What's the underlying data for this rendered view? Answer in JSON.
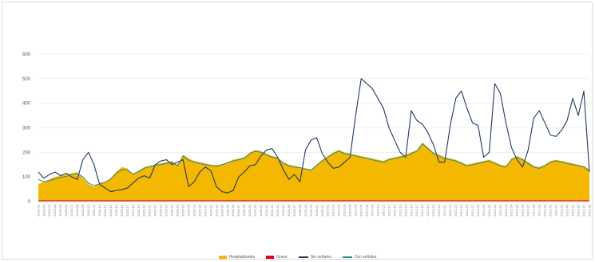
{
  "colors": {
    "hospitalizados": "#F5B800",
    "grave": "#E8001C",
    "sin_senales": "#1F3864",
    "con_senales": "#2E8B8B",
    "grid": "#e6e6e6",
    "axis": "#bfbfbf"
  },
  "legend": [
    {
      "label": "Hospitalizados",
      "kind": "area",
      "color_key": "hospitalizados"
    },
    {
      "label": "Grave",
      "kind": "area",
      "color_key": "grave"
    },
    {
      "label": "Sin señales",
      "kind": "line",
      "color_key": "sin_senales"
    },
    {
      "label": "Con señales",
      "kind": "line",
      "color_key": "con_senales"
    }
  ],
  "chart_data": {
    "type": "area",
    "title": "",
    "xlabel": "",
    "ylabel": "",
    "ylim": [
      0,
      600
    ],
    "y_ticks": [
      "0",
      "100",
      "200",
      "300",
      "400",
      "500",
      "600"
    ],
    "grid": true,
    "legend_position": "bottom",
    "x_count": 100,
    "series": [
      {
        "name": "Hospitalizados",
        "kind": "area",
        "values": [
          70,
          80,
          90,
          100,
          105,
          110,
          115,
          118,
          95,
          70,
          60,
          75,
          80,
          95,
          120,
          140,
          135,
          110,
          125,
          140,
          145,
          150,
          155,
          160,
          165,
          150,
          190,
          175,
          165,
          160,
          155,
          150,
          148,
          152,
          160,
          170,
          175,
          180,
          200,
          210,
          205,
          195,
          185,
          180,
          160,
          150,
          145,
          140,
          135,
          130,
          150,
          170,
          185,
          200,
          210,
          200,
          195,
          190,
          185,
          180,
          175,
          170,
          165,
          175,
          180,
          185,
          190,
          200,
          210,
          240,
          220,
          200,
          190,
          180,
          175,
          170,
          160,
          150,
          155,
          160,
          165,
          170,
          160,
          150,
          145,
          175,
          185,
          175,
          160,
          145,
          140,
          150,
          165,
          170,
          165,
          160,
          155,
          150,
          145,
          130
        ]
      },
      {
        "name": "Grave",
        "kind": "area",
        "values": [
          5,
          5,
          5,
          5,
          5,
          5,
          5,
          5,
          5,
          5,
          5,
          5,
          5,
          5,
          5,
          5,
          5,
          5,
          5,
          5,
          5,
          5,
          5,
          5,
          5,
          5,
          5,
          5,
          5,
          5,
          5,
          5,
          5,
          5,
          5,
          5,
          5,
          5,
          5,
          5,
          5,
          5,
          5,
          5,
          5,
          5,
          5,
          5,
          5,
          5,
          5,
          5,
          5,
          5,
          5,
          5,
          5,
          5,
          5,
          5,
          5,
          5,
          5,
          5,
          5,
          5,
          5,
          5,
          5,
          5,
          5,
          5,
          5,
          5,
          5,
          5,
          5,
          5,
          5,
          5,
          5,
          5,
          5,
          5,
          5,
          5,
          5,
          5,
          5,
          5,
          5,
          5,
          5,
          5,
          5,
          5,
          5,
          5,
          5,
          5
        ]
      },
      {
        "name": "Sin señales",
        "kind": "line",
        "values": [
          120,
          95,
          110,
          120,
          105,
          115,
          100,
          90,
          170,
          200,
          150,
          70,
          55,
          40,
          45,
          48,
          55,
          75,
          95,
          105,
          95,
          150,
          165,
          170,
          150,
          160,
          170,
          60,
          80,
          120,
          140,
          125,
          60,
          40,
          35,
          45,
          100,
          120,
          145,
          150,
          185,
          210,
          215,
          180,
          130,
          90,
          110,
          80,
          210,
          250,
          260,
          195,
          160,
          135,
          140,
          160,
          180,
          350,
          500,
          480,
          460,
          420,
          380,
          300,
          250,
          200,
          180,
          370,
          330,
          315,
          280,
          230,
          160,
          160,
          310,
          420,
          450,
          380,
          320,
          310,
          180,
          200,
          480,
          440,
          320,
          220,
          170,
          140,
          210,
          340,
          370,
          320,
          270,
          265,
          290,
          330,
          420,
          350,
          450,
          120
        ]
      },
      {
        "name": "Con señales",
        "kind": "line",
        "values": [
          90,
          80,
          85,
          92,
          98,
          102,
          110,
          115,
          100,
          75,
          65,
          72,
          78,
          92,
          115,
          130,
          128,
          112,
          122,
          135,
          142,
          148,
          150,
          155,
          160,
          145,
          185,
          168,
          160,
          155,
          150,
          146,
          144,
          150,
          158,
          165,
          170,
          175,
          195,
          205,
          200,
          190,
          180,
          175,
          155,
          145,
          140,
          138,
          132,
          128,
          148,
          165,
          180,
          195,
          205,
          195,
          190,
          185,
          180,
          175,
          170,
          165,
          160,
          170,
          175,
          180,
          185,
          195,
          205,
          235,
          215,
          195,
          185,
          175,
          170,
          165,
          155,
          145,
          150,
          155,
          160,
          165,
          155,
          145,
          140,
          170,
          180,
          170,
          155,
          140,
          135,
          145,
          160,
          165,
          160,
          155,
          150,
          145,
          140,
          125
        ]
      }
    ],
    "x_labels": [
      "2020-01",
      "2020-02",
      "2020-03",
      "2020-04",
      "2020-05",
      "2020-06",
      "2020-07",
      "2020-08",
      "2020-09",
      "2020-10",
      "2020-11",
      "2020-12",
      "2020-13",
      "2020-14",
      "2020-15",
      "2020-16",
      "2020-17",
      "2020-18",
      "2020-19",
      "2020-20",
      "2020-21",
      "2020-22",
      "2020-23",
      "2020-24",
      "2020-25",
      "2020-26",
      "2020-27",
      "2020-28",
      "2020-29",
      "2020-30",
      "2020-31",
      "2020-32",
      "2020-33",
      "2020-34",
      "2020-35",
      "2020-36",
      "2020-37",
      "2020-38",
      "2020-39",
      "2020-40",
      "2020-41",
      "2020-42",
      "2020-43",
      "2020-44",
      "2020-45",
      "2020-46",
      "2020-47",
      "2020-48",
      "2020-49",
      "2020-50",
      "2020-51",
      "2020-52",
      "2021-01",
      "2021-02",
      "2021-03",
      "2021-04",
      "2021-05",
      "2021-06",
      "2021-07",
      "2021-08",
      "2021-09",
      "2021-10",
      "2021-11",
      "2021-12",
      "2021-13",
      "2021-14",
      "2021-15",
      "2021-16",
      "2021-17",
      "2021-18",
      "2021-19",
      "2021-20",
      "2021-21",
      "2021-22",
      "2021-23",
      "2021-24",
      "2021-25",
      "2021-26",
      "2021-27",
      "2021-28",
      "2021-29",
      "2021-30",
      "2021-31",
      "2021-32",
      "2021-33",
      "2021-34",
      "2021-35",
      "2021-36",
      "2021-37",
      "2021-38",
      "2021-39",
      "2021-40",
      "2021-41",
      "2021-42",
      "2021-43",
      "2021-44",
      "2021-45",
      "2021-46",
      "2021-47",
      "2021-48"
    ]
  }
}
